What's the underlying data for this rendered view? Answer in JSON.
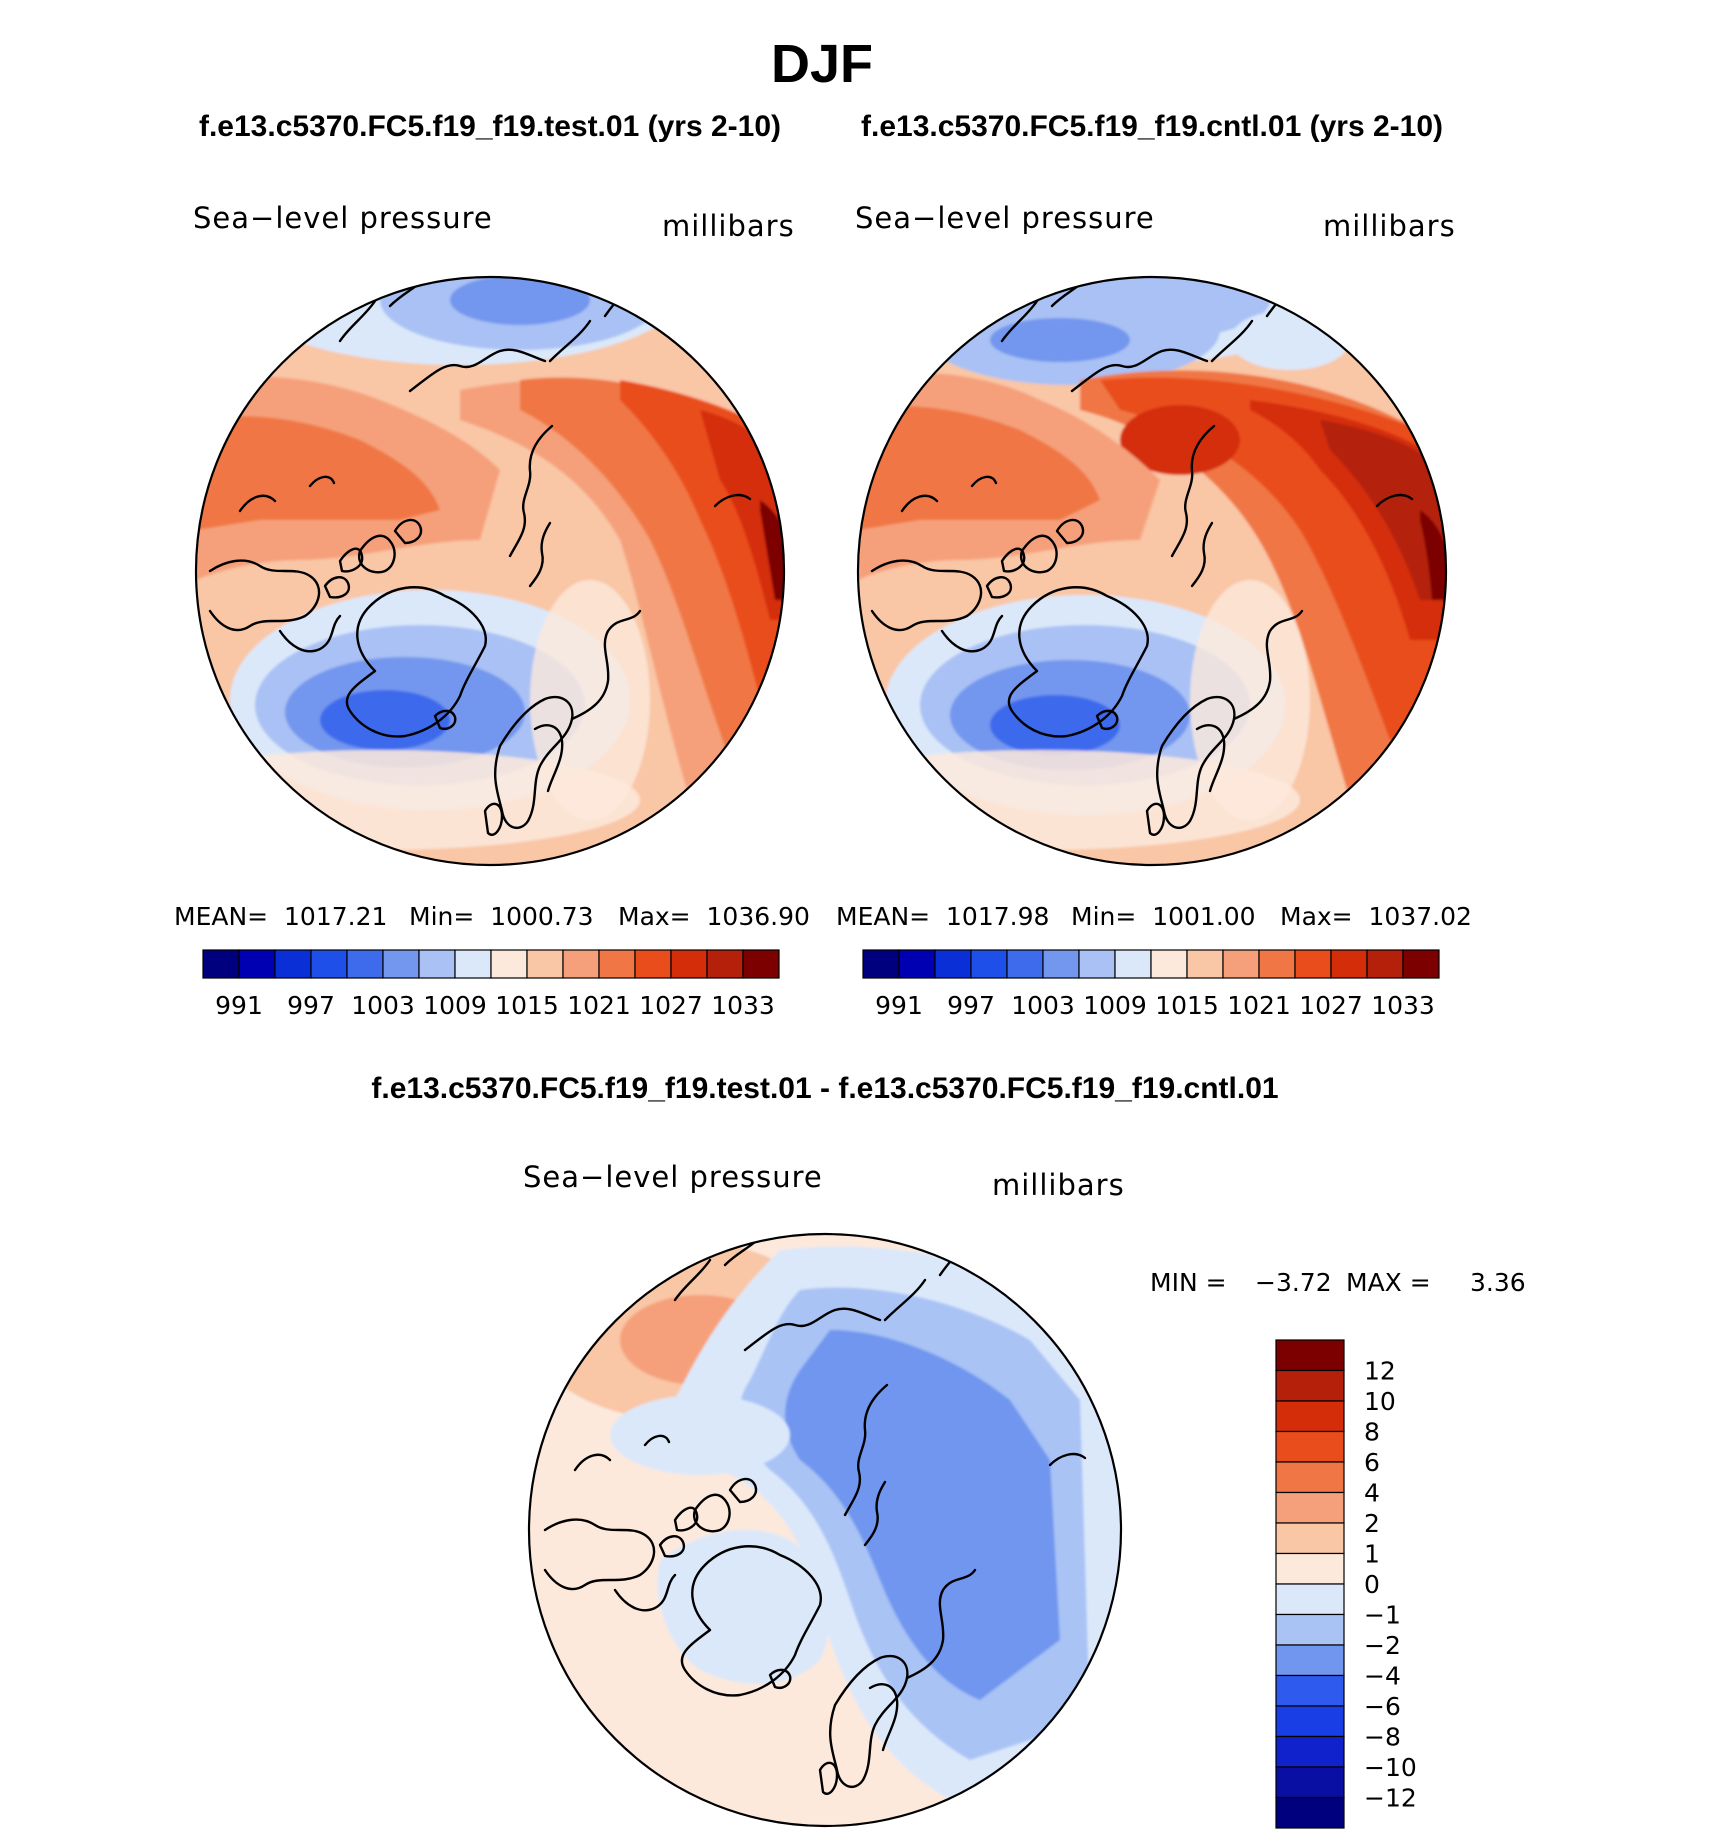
{
  "colors": {
    "abs_scale": [
      "#00007f",
      "#0000b2",
      "#0a2fd6",
      "#1e4fe8",
      "#3e6bec",
      "#7396ee",
      "#a9c1f4",
      "#dbe8fa",
      "#fde9dc",
      "#f9c6a6",
      "#f5a07a",
      "#f07745",
      "#ea4d1c",
      "#d42d0a",
      "#b4200a",
      "#7c0000"
    ],
    "diff_scale": [
      "#00007f",
      "#0a0fa4",
      "#0f22cc",
      "#1a3ee6",
      "#2e5bee",
      "#7096ef",
      "#a9c3f5",
      "#dbe8fa",
      "#fde9dc",
      "#f9c6a6",
      "#f5a07a",
      "#f07745",
      "#ea4d1c",
      "#d42d0a",
      "#b4200a",
      "#7c0000"
    ]
  },
  "chart_data": [
    {
      "type": "heatmap",
      "id": "test",
      "title": "f.e13.c5370.FC5.f19_f19.test.01 (yrs 2-10)",
      "variable_label": "Sea−level pressure",
      "units_label": "millibars",
      "stats": {
        "mean": 1017.21,
        "min": 1000.73,
        "max": 1036.9
      },
      "stats_text": {
        "mean": "MEAN=  1017.21",
        "min": "Min=  1000.73",
        "max": "Max=  1036.90"
      },
      "contour_levels": [
        988,
        991,
        994,
        997,
        1000,
        1003,
        1006,
        1009,
        1012,
        1015,
        1018,
        1021,
        1024,
        1027,
        1030,
        1033,
        1036
      ],
      "colorbar_tick_labels": [
        "991",
        "997",
        "1003",
        "1009",
        "1015",
        "1021",
        "1027",
        "1033"
      ]
    },
    {
      "type": "heatmap",
      "id": "cntl",
      "title": "f.e13.c5370.FC5.f19_f19.cntl.01 (yrs 2-10)",
      "variable_label": "Sea−level pressure",
      "units_label": "millibars",
      "stats": {
        "mean": 1017.98,
        "min": 1001.0,
        "max": 1037.02
      },
      "stats_text": {
        "mean": "MEAN=  1017.98",
        "min": "Min=  1001.00",
        "max": "Max=  1037.02"
      },
      "contour_levels": [
        988,
        991,
        994,
        997,
        1000,
        1003,
        1006,
        1009,
        1012,
        1015,
        1018,
        1021,
        1024,
        1027,
        1030,
        1033,
        1036
      ],
      "colorbar_tick_labels": [
        "991",
        "997",
        "1003",
        "1009",
        "1015",
        "1021",
        "1027",
        "1033"
      ]
    },
    {
      "type": "heatmap",
      "id": "diff",
      "title": "f.e13.c5370.FC5.f19_f19.test.01 - f.e13.c5370.FC5.f19_f19.cntl.01",
      "variable_label": "Sea−level pressure",
      "units_label": "millibars",
      "stats": {
        "min": -3.72,
        "max": 3.36
      },
      "stats_text": {
        "min_label": "MIN =",
        "min": "−3.72",
        "max_label": "MAX =",
        "max": "3.36"
      },
      "contour_levels": [
        -12,
        -10,
        -8,
        -6,
        -4,
        -2,
        -1,
        0,
        1,
        2,
        4,
        6,
        8,
        10,
        12
      ],
      "colorbar_tick_labels": [
        "12",
        "10",
        "8",
        "6",
        "4",
        "2",
        "1",
        "0",
        "−1",
        "−2",
        "−4",
        "−6",
        "−8",
        "−10",
        "−12"
      ]
    }
  ],
  "figure": {
    "season_title": "DJF"
  }
}
